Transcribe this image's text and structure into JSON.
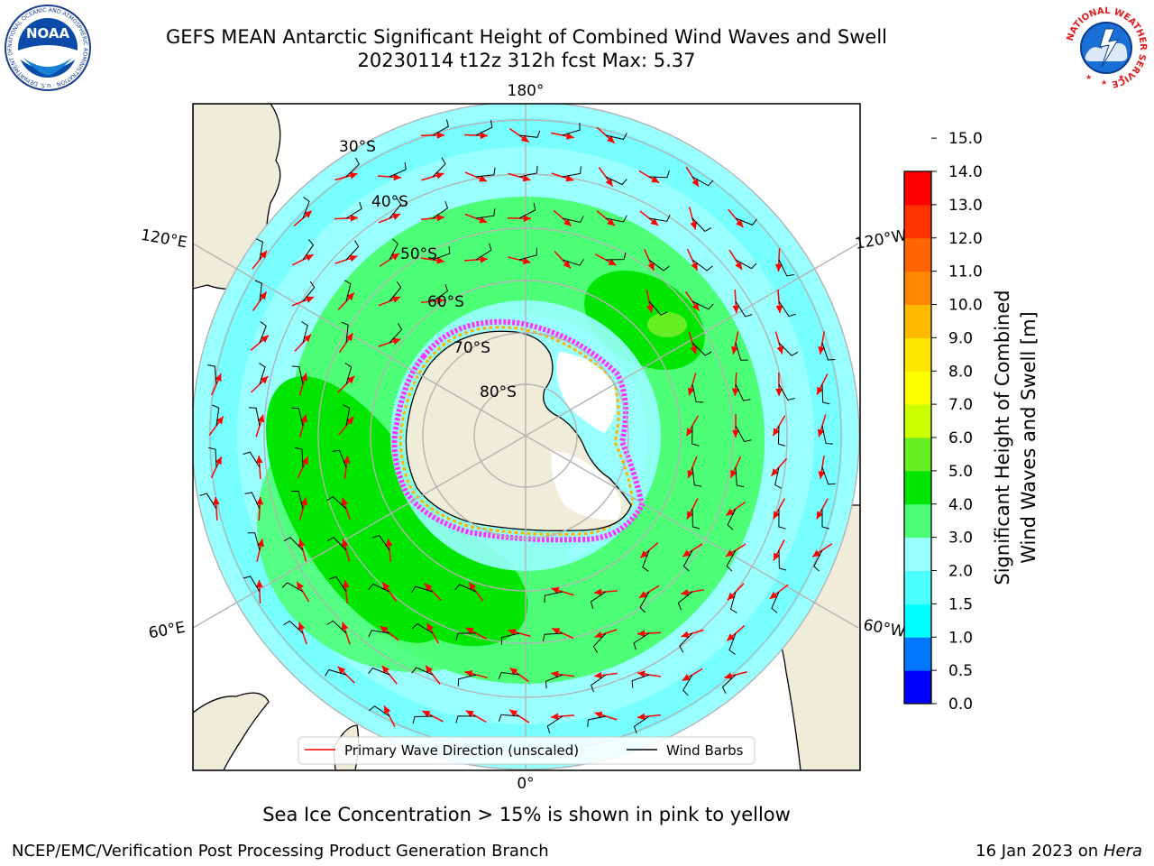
{
  "header": {
    "title_line1": "GEFS MEAN Antarctic Significant Height of Combined Wind Waves and Swell",
    "title_line2": "20230114 t12z 312h fcst   Max: 5.37"
  },
  "logos": {
    "left": {
      "name": "noaa-logo",
      "text": "NOAA",
      "ring_text": "NATIONAL OCEANIC AND ATMOSPHERIC ADMINISTRATION · U.S. DEPARTMENT OF COMMERCE"
    },
    "right": {
      "name": "nws-logo",
      "ring_text": "NATIONAL WEATHER SERVICE"
    }
  },
  "map": {
    "projection": "south-polar-stereographic",
    "longitude_labels": {
      "top": "180°",
      "bottom": "0°",
      "upper_left": "120°E",
      "lower_left": "60°E",
      "upper_right": "120°W",
      "lower_right": "60°W"
    },
    "latitude_labels": [
      "30°S",
      "40°S",
      "50°S",
      "60°S",
      "70°S",
      "80°S"
    ],
    "legend": {
      "primary_wave_direction": "Primary Wave Direction (unscaled)",
      "wind_barbs": "Wind Barbs",
      "wave_color": "#ff0000",
      "barb_color": "#000000"
    },
    "colors": {
      "land": "#efecd9",
      "ice": "#ffffff",
      "band_2_3": "#99ffff",
      "band_3_4": "#4dff77",
      "band_4_5": "#00e600",
      "band_5_6": "#66ee22"
    }
  },
  "colorbar": {
    "label_line1": "Significant Height of Combined",
    "label_line2": "Wind Waves and Swell [m]",
    "ticks": [
      "0.0",
      "0.5",
      "1.0",
      "1.5",
      "2.0",
      "3.0",
      "4.0",
      "5.0",
      "6.0",
      "7.0",
      "8.0",
      "9.0",
      "10.0",
      "11.0",
      "12.0",
      "13.0",
      "14.0",
      "15.0"
    ],
    "colors": [
      "#0000ff",
      "#0077ff",
      "#00ffff",
      "#4dffff",
      "#99ffff",
      "#4dff77",
      "#00e600",
      "#66ee22",
      "#ccff00",
      "#ffff00",
      "#ffe600",
      "#ffbb00",
      "#ff8800",
      "#ff6600",
      "#ff3300",
      "#ff0000"
    ]
  },
  "note": "Sea Ice Concentration > 15% is shown in pink to yellow",
  "footer": {
    "left": "NCEP/EMC/Verification Post Processing Product Generation Branch",
    "right_prefix": "16 Jan 2023 on ",
    "right_machine": "Hera"
  }
}
